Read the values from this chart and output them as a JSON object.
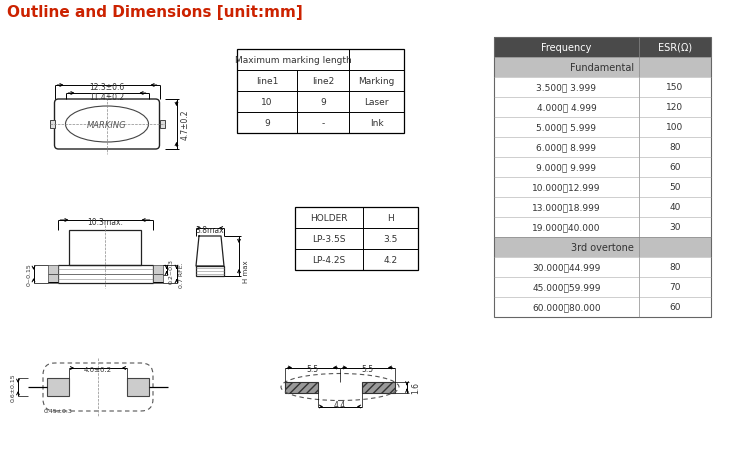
{
  "title": "Outline and Dimensions [unit:mm]",
  "title_color": "#cc2200",
  "bg_color": "#ffffff",
  "table1_data": [
    [
      "Maximum marking length",
      "",
      "Marking"
    ],
    [
      "line1",
      "line2",
      ""
    ],
    [
      "10",
      "9",
      "Laser"
    ],
    [
      "9",
      "-",
      "Ink"
    ]
  ],
  "table2_data": [
    [
      "HOLDER",
      "H"
    ],
    [
      "LP-3.5S",
      "3.5"
    ],
    [
      "LP-4.2S",
      "4.2"
    ]
  ],
  "table3_header": [
    "Frequency",
    "ESR(Ω)"
  ],
  "table3_header_bg": "#4a4a4a",
  "table3_section_bg": "#c0c0c0",
  "table3_sections": [
    {
      "label": "Fundamental",
      "rows": [
        [
          "3.500～ 3.999",
          "150"
        ],
        [
          "4.000～ 4.999",
          "120"
        ],
        [
          "5.000～ 5.999",
          "100"
        ],
        [
          "6.000～ 8.999",
          "80"
        ],
        [
          "9.000～ 9.999",
          "60"
        ],
        [
          "10.000～12.999",
          "50"
        ],
        [
          "13.000～18.999",
          "40"
        ],
        [
          "19.000～40.000",
          "30"
        ]
      ]
    },
    {
      "label": "3rd overtone",
      "rows": [
        [
          "30.000～44.999",
          "80"
        ],
        [
          "45.000～59.999",
          "70"
        ],
        [
          "60.000～80.000",
          "60"
        ]
      ]
    }
  ]
}
